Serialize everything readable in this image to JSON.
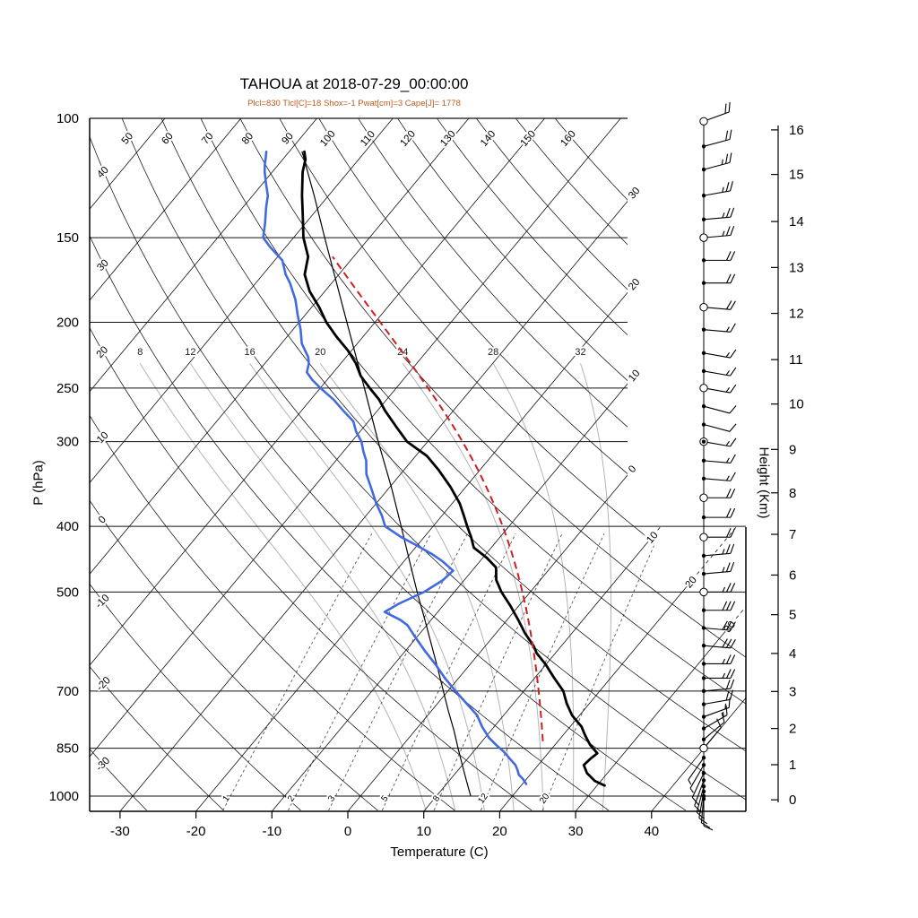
{
  "chart_data": {
    "type": "skewt-log-p-sounding",
    "title": "TAHOUA at 2018-07-29_00:00:00",
    "params_line": "Plcl=830 Tlcl[C]=18 Shox=-1 Pwat[cm]=3 Cape[J]= 1778",
    "xlabel": "Temperature (C)",
    "ylabel": "P (hPa)",
    "y2label": "Height (Km)",
    "indices": {
      "Plcl": 830,
      "Tlcl_C": 18,
      "Shox": -1,
      "Pwat_cm": 3,
      "Cape_J": 1778
    },
    "pressure_ticks": [
      100,
      150,
      200,
      250,
      300,
      400,
      500,
      700,
      850,
      1000
    ],
    "temp_ticks": [
      -30,
      -20,
      -10,
      0,
      10,
      20,
      30,
      40
    ],
    "height_ticks_km": [
      0,
      1,
      2,
      3,
      4,
      5,
      6,
      7,
      8,
      9,
      10,
      11,
      12,
      13,
      14,
      15,
      16
    ],
    "height_tick_pressures": [
      1013,
      899,
      795,
      701,
      616,
      540,
      472,
      411,
      357,
      308,
      264,
      227,
      194,
      166,
      142,
      121,
      104
    ],
    "colors": {
      "dewpoint": "#4169e1",
      "temperature": "#000000",
      "parcel": "#cc1f1f",
      "moist_adiabat": "#b4b4b4",
      "subtitle": "#bf5c1e"
    },
    "isotherms": {
      "start": -120,
      "end": 40,
      "step": 10,
      "right_label_values": [
        -30,
        -20,
        -10,
        0,
        10,
        20,
        30
      ],
      "right_label_text": [
        "30",
        "20",
        "10",
        "0",
        "10",
        "20",
        "30"
      ]
    },
    "dry_adiabats": {
      "start": -30,
      "end": 160,
      "step": 10,
      "top_labels": [
        50,
        60,
        70,
        80,
        90,
        100,
        110,
        120,
        130,
        140,
        150,
        160
      ],
      "left_labels": [
        40,
        30,
        20,
        10,
        0,
        -10,
        -20,
        -30
      ]
    },
    "moist_adiabats": [
      8,
      12,
      16,
      20,
      24,
      28,
      32
    ],
    "mixing_ratio_lines": [
      1,
      2,
      3,
      5,
      8,
      12,
      20
    ],
    "series": {
      "temperature": {
        "label": "temperature",
        "color": "#000000",
        "width": 2.8,
        "points_p_c": [
          [
            965,
            31
          ],
          [
            950,
            29.2
          ],
          [
            925,
            27.3
          ],
          [
            900,
            26
          ],
          [
            880,
            26.2
          ],
          [
            865,
            26.5
          ],
          [
            840,
            24.6
          ],
          [
            815,
            23
          ],
          [
            790,
            21.5
          ],
          [
            760,
            19
          ],
          [
            730,
            17
          ],
          [
            700,
            15.2
          ],
          [
            670,
            12.6
          ],
          [
            640,
            10
          ],
          [
            615,
            7.5
          ],
          [
            600,
            6.3
          ],
          [
            575,
            3.8
          ],
          [
            550,
            1.5
          ],
          [
            525,
            -1
          ],
          [
            500,
            -3.8
          ],
          [
            480,
            -5.8
          ],
          [
            460,
            -7.2
          ],
          [
            445,
            -9.5
          ],
          [
            430,
            -12.3
          ],
          [
            415,
            -13.8
          ],
          [
            400,
            -15.5
          ],
          [
            385,
            -17.2
          ],
          [
            370,
            -19
          ],
          [
            350,
            -22
          ],
          [
            330,
            -25.5
          ],
          [
            315,
            -28.5
          ],
          [
            300,
            -32.7
          ],
          [
            285,
            -35.8
          ],
          [
            270,
            -39
          ],
          [
            260,
            -41
          ],
          [
            250,
            -43.5
          ],
          [
            240,
            -46
          ],
          [
            230,
            -48
          ],
          [
            220,
            -50.5
          ],
          [
            210,
            -53.5
          ],
          [
            200,
            -56.4
          ],
          [
            190,
            -59
          ],
          [
            180,
            -62
          ],
          [
            170,
            -64.5
          ],
          [
            160,
            -66
          ],
          [
            150,
            -68.7
          ],
          [
            140,
            -71
          ],
          [
            130,
            -73.5
          ],
          [
            120,
            -76
          ],
          [
            115,
            -77
          ],
          [
            112,
            -78
          ]
        ]
      },
      "dewpoint": {
        "label": "dewpoint",
        "color": "#4169e1",
        "width": 2.6,
        "points_p_c": [
          [
            960,
            20.5
          ],
          [
            945,
            19.6
          ],
          [
            930,
            18.5
          ],
          [
            915,
            17.8
          ],
          [
            900,
            17
          ],
          [
            880,
            15.5
          ],
          [
            860,
            14
          ],
          [
            840,
            12.2
          ],
          [
            820,
            10.5
          ],
          [
            790,
            8.4
          ],
          [
            760,
            6.5
          ],
          [
            730,
            3.8
          ],
          [
            700,
            1
          ],
          [
            670,
            -1.8
          ],
          [
            640,
            -4.5
          ],
          [
            610,
            -7.5
          ],
          [
            580,
            -10.5
          ],
          [
            560,
            -12.5
          ],
          [
            550,
            -14
          ],
          [
            535,
            -17
          ],
          [
            520,
            -16
          ],
          [
            500,
            -14
          ],
          [
            480,
            -12.8
          ],
          [
            465,
            -12.5
          ],
          [
            450,
            -15
          ],
          [
            440,
            -17
          ],
          [
            425,
            -20.5
          ],
          [
            415,
            -23
          ],
          [
            400,
            -26.3
          ],
          [
            385,
            -28
          ],
          [
            370,
            -30
          ],
          [
            350,
            -32.5
          ],
          [
            335,
            -34.5
          ],
          [
            320,
            -36
          ],
          [
            310,
            -37.4
          ],
          [
            300,
            -38.7
          ],
          [
            290,
            -40.5
          ],
          [
            280,
            -42
          ],
          [
            270,
            -44.5
          ],
          [
            260,
            -47
          ],
          [
            250,
            -50
          ],
          [
            243,
            -52
          ],
          [
            237,
            -53.5
          ],
          [
            230,
            -54.2
          ],
          [
            225,
            -55
          ],
          [
            215,
            -57.3
          ],
          [
            205,
            -59
          ],
          [
            195,
            -61
          ],
          [
            185,
            -63
          ],
          [
            175,
            -65.5
          ],
          [
            170,
            -67
          ],
          [
            162,
            -69
          ],
          [
            155,
            -72
          ],
          [
            150,
            -74
          ],
          [
            143,
            -75.3
          ],
          [
            135,
            -77
          ],
          [
            130,
            -78
          ],
          [
            125,
            -79.5
          ],
          [
            120,
            -81
          ],
          [
            117,
            -81.8
          ],
          [
            114,
            -82.5
          ],
          [
            112,
            -83
          ]
        ]
      },
      "secondary": {
        "label": "thin reference curve",
        "color": "#000000",
        "width": 1.2,
        "points_p_c": [
          [
            1000,
            14.5
          ],
          [
            950,
            12.3
          ],
          [
            900,
            10
          ],
          [
            850,
            7.6
          ],
          [
            800,
            5.1
          ],
          [
            750,
            2.3
          ],
          [
            700,
            -0.6
          ],
          [
            650,
            -3.7
          ],
          [
            600,
            -7.1
          ],
          [
            550,
            -10.8
          ],
          [
            500,
            -14.9
          ],
          [
            450,
            -19.3
          ],
          [
            400,
            -24.2
          ],
          [
            350,
            -29.8
          ],
          [
            300,
            -36.5
          ],
          [
            250,
            -44.2
          ],
          [
            200,
            -53.7
          ],
          [
            150,
            -65.9
          ],
          [
            130,
            -71.9
          ],
          [
            112,
            -78.3
          ]
        ]
      },
      "parcel": {
        "label": "parcel ascent",
        "color": "#cc1f1f",
        "style": "dashed",
        "lcl_pressure_hpa": 830,
        "lcl_temp_c": 18,
        "top_pressure_hpa": 160
      }
    },
    "wind_barbs": {
      "speed_unit": "kt",
      "levels": [
        [
          101,
          70,
          20,
          "circle"
        ],
        [
          110,
          75,
          20,
          "dot"
        ],
        [
          119,
          75,
          25,
          "dot"
        ],
        [
          130,
          80,
          25,
          "dot"
        ],
        [
          141,
          85,
          25,
          "dot"
        ],
        [
          150,
          85,
          25,
          "circle"
        ],
        [
          162,
          90,
          20,
          "dot"
        ],
        [
          175,
          90,
          20,
          "dot"
        ],
        [
          190,
          95,
          20,
          "circle"
        ],
        [
          205,
          95,
          15,
          "dot"
        ],
        [
          222,
          100,
          15,
          "dot"
        ],
        [
          236,
          100,
          15,
          "dot"
        ],
        [
          250,
          100,
          15,
          "circle"
        ],
        [
          266,
          105,
          10,
          "dot"
        ],
        [
          283,
          105,
          10,
          "dot"
        ],
        [
          300,
          100,
          15,
          "circledot"
        ],
        [
          320,
          95,
          15,
          "dot"
        ],
        [
          340,
          95,
          15,
          "dot"
        ],
        [
          363,
          90,
          20,
          "circle"
        ],
        [
          388,
          90,
          20,
          "dot"
        ],
        [
          415,
          90,
          20,
          "circle"
        ],
        [
          442,
          85,
          25,
          "dot"
        ],
        [
          470,
          85,
          25,
          "dot"
        ],
        [
          500,
          90,
          25,
          "circle"
        ],
        [
          532,
          90,
          30,
          "dot"
        ],
        [
          565,
          95,
          30,
          "dot"
        ],
        [
          600,
          95,
          30,
          "dot"
        ],
        [
          638,
          90,
          25,
          "dot"
        ],
        [
          670,
          90,
          25,
          "dot"
        ],
        [
          700,
          85,
          20,
          "dot"
        ],
        [
          732,
          80,
          20,
          "dot"
        ],
        [
          764,
          70,
          15,
          "dot"
        ],
        [
          795,
          60,
          15,
          "dot"
        ],
        [
          825,
          50,
          10,
          "dot"
        ],
        [
          850,
          40,
          10,
          "circle"
        ],
        [
          878,
          215,
          5,
          "dot"
        ],
        [
          900,
          210,
          5,
          "dot"
        ],
        [
          925,
          205,
          10,
          "dot"
        ],
        [
          948,
          200,
          10,
          "dot"
        ],
        [
          968,
          195,
          10,
          "dot"
        ],
        [
          985,
          190,
          10,
          "dot"
        ],
        [
          1000,
          185,
          10,
          "dot"
        ],
        [
          1010,
          180,
          10,
          "dot"
        ]
      ]
    }
  }
}
